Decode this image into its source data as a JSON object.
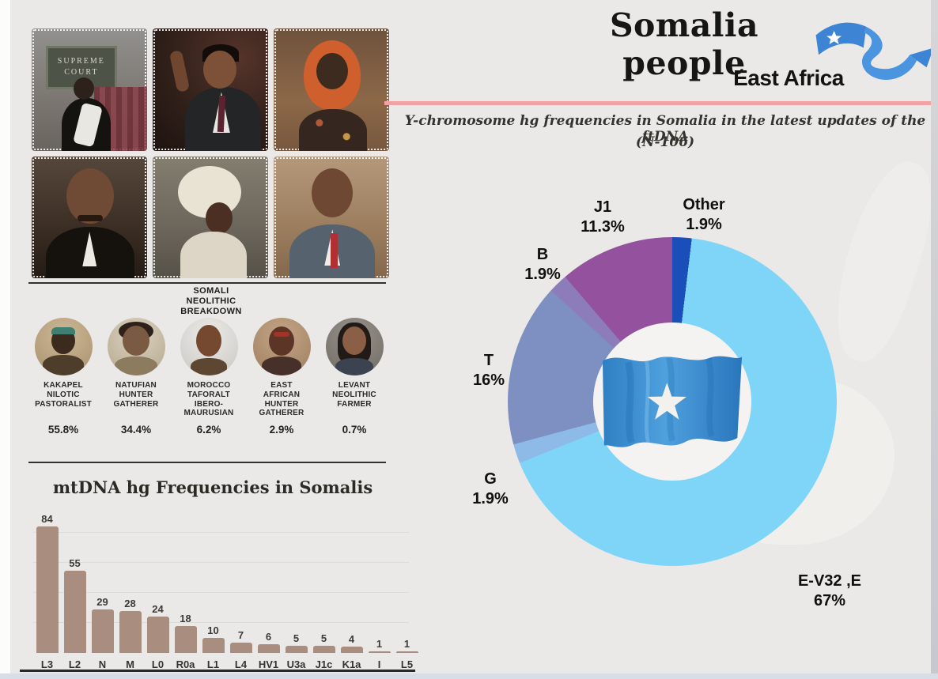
{
  "header": {
    "title": "Somalia people",
    "region": "East Africa",
    "accent_color": "#f3a2a3"
  },
  "y_heading": {
    "line1": "Y-chromosome hg frequencies in Somalia in the latest updates of the ftDNA",
    "line2": "(N-106)"
  },
  "photo_grid": {
    "photos": [
      {
        "desc": "woman in black attire in front of Supreme Court sign",
        "sign_text": "SUPREME COURT"
      },
      {
        "desc": "man in dark suit speaking with raised finger"
      },
      {
        "desc": "woman wearing orange hijab"
      },
      {
        "desc": "older man with mustache in dark suit"
      },
      {
        "desc": "woman with white head wrap in profile"
      },
      {
        "desc": "smiling man in gray suit with red tie"
      }
    ]
  },
  "neolithic": {
    "heading": "SOMALI\nNEOLITHIC\nBREAKDOWN",
    "items": [
      {
        "label": "KAKAPEL\nNILOTIC\nPASTORALIST",
        "value": "55.8%"
      },
      {
        "label": "NATUFIAN\nHUNTER\nGATHERER",
        "value": "34.4%"
      },
      {
        "label": "MOROCCO\nTAFORALT\nIBERO-\nMAURUSIAN",
        "value": "6.2%"
      },
      {
        "label": "EAST\nAFRICAN\nHUNTER\nGATHERER",
        "value": "2.9%"
      },
      {
        "label": "LEVANT\nNEOLITHIC\nFARMER",
        "value": "0.7%"
      }
    ]
  },
  "chart_data": [
    {
      "type": "pie",
      "variant": "donut",
      "title": "Y-chromosome hg frequencies in Somalia in the latest updates of the ftDNA (N-106)",
      "start_angle_deg": 0,
      "direction": "clockwise",
      "center_icon": "somalia-flag",
      "slices": [
        {
          "label": "Other",
          "pct_text": "1.9%",
          "value": 1.9,
          "color": "#1a4eb8"
        },
        {
          "label": "E-V32 ,E",
          "pct_text": "67%",
          "value": 67,
          "color": "#7ed5f8"
        },
        {
          "label": "G",
          "pct_text": "1.9%",
          "value": 1.9,
          "color": "#8dbae7"
        },
        {
          "label": "T",
          "pct_text": "16%",
          "value": 16,
          "color": "#7d90c1"
        },
        {
          "label": "B",
          "pct_text": "1.9%",
          "value": 1.9,
          "color": "#8c7dba"
        },
        {
          "label": "J1",
          "pct_text": "11.3%",
          "value": 11.3,
          "color": "#94519e"
        }
      ]
    },
    {
      "type": "bar",
      "title": "mtDNA hg Frequencies in Somalis",
      "categories": [
        "L3",
        "L2",
        "N",
        "M",
        "L0",
        "R0a",
        "L1",
        "L4",
        "HV1",
        "U3a",
        "J1c",
        "K1a",
        "I",
        "L5"
      ],
      "values": [
        84,
        55,
        29,
        28,
        24,
        18,
        10,
        7,
        6,
        5,
        5,
        4,
        1,
        1
      ],
      "bar_color": "#a98d7e",
      "xlabel": "",
      "ylabel": "",
      "ylim": [
        0,
        90
      ],
      "grid": true,
      "gridline_values": [
        20,
        40,
        60,
        80
      ]
    }
  ]
}
